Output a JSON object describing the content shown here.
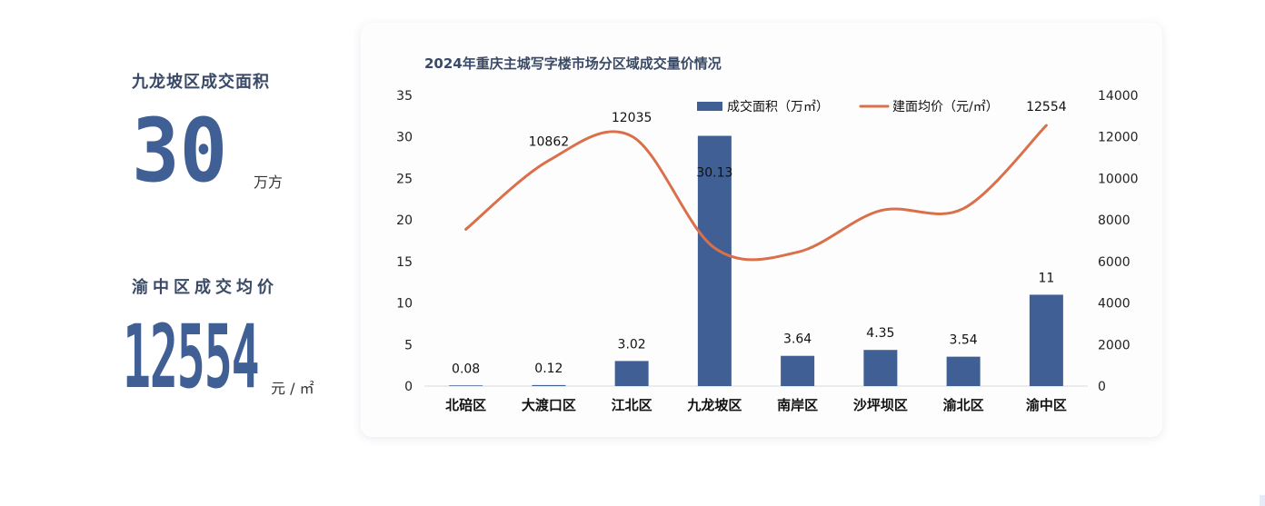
{
  "kpi1": {
    "title": "九龙坡区成交面积",
    "value": "30",
    "unit": "万方"
  },
  "kpi2": {
    "title": "渝中区成交均价",
    "value": "12554",
    "unit": "元 / ㎡"
  },
  "chart_data": {
    "type": "bar+line",
    "title": "2024年重庆主城写字楼市场分区域成交量价情况",
    "categories": [
      "北碚区",
      "大渡口区",
      "江北区",
      "九龙坡区",
      "南岸区",
      "沙坪坝区",
      "渝北区",
      "渝中区"
    ],
    "series": [
      {
        "name": "成交面积（万㎡）",
        "type": "bar",
        "axis": "left",
        "color": "#3f5f95",
        "values": [
          0.08,
          0.12,
          3.02,
          30.13,
          3.64,
          4.35,
          3.54,
          11
        ],
        "labels": [
          "0.08",
          "0.12",
          "3.02",
          "30.13",
          "3.64",
          "4.35",
          "3.54",
          "11"
        ]
      },
      {
        "name": "建面均价（元/㎡）",
        "type": "line",
        "axis": "right",
        "color": "#d9704a",
        "values": [
          7550,
          10862,
          12035,
          6650,
          6450,
          8450,
          8550,
          12554
        ],
        "labels": [
          "",
          "10862",
          "12035",
          "",
          "",
          "",
          "",
          "12554"
        ]
      }
    ],
    "y_left": {
      "min": 0,
      "max": 35,
      "ticks": [
        "0",
        "5",
        "10",
        "15",
        "20",
        "25",
        "30",
        "35"
      ]
    },
    "y_right": {
      "min": 0,
      "max": 14000,
      "ticks": [
        "0",
        "2000",
        "4000",
        "6000",
        "8000",
        "10000",
        "12000",
        "14000"
      ]
    },
    "grid": false,
    "legend": "top-right"
  }
}
